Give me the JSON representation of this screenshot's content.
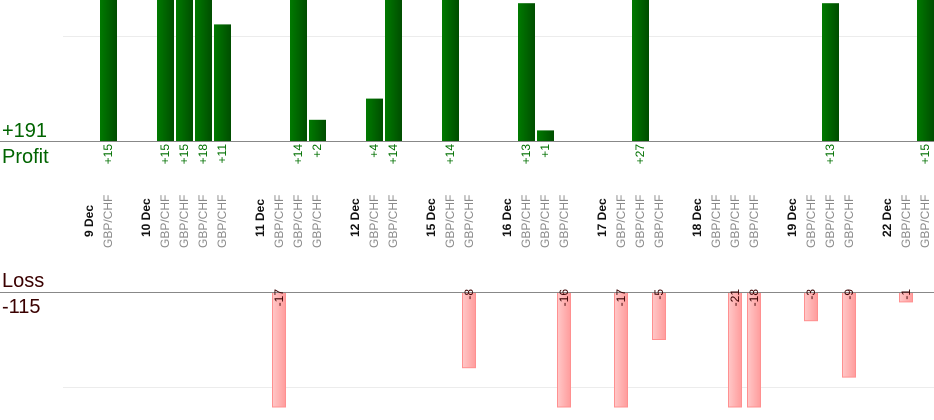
{
  "chart_data": {
    "type": "bar",
    "title": "",
    "profit": {
      "label": "Profit",
      "total": "+191",
      "color": "#006400"
    },
    "loss": {
      "label": "Loss",
      "total": "-115",
      "color": "#ffa0a0"
    },
    "days": [
      {
        "date": "9 Dec",
        "trades": [
          {
            "pair": "GBP/CHF",
            "value": 15
          }
        ]
      },
      {
        "date": "10 Dec",
        "trades": [
          {
            "pair": "GBP/CHF",
            "value": 15
          },
          {
            "pair": "GBP/CHF",
            "value": 15
          },
          {
            "pair": "GBP/CHF",
            "value": 18
          },
          {
            "pair": "GBP/CHF",
            "value": 11
          }
        ]
      },
      {
        "date": "11 Dec",
        "trades": [
          {
            "pair": "GBP/CHF",
            "value": -17
          },
          {
            "pair": "GBP/CHF",
            "value": 14
          },
          {
            "pair": "GBP/CHF",
            "value": 2
          }
        ]
      },
      {
        "date": "12 Dec",
        "trades": [
          {
            "pair": "GBP/CHF",
            "value": 4
          },
          {
            "pair": "GBP/CHF",
            "value": 14
          }
        ]
      },
      {
        "date": "15 Dec",
        "trades": [
          {
            "pair": "GBP/CHF",
            "value": 14
          },
          {
            "pair": "GBP/CHF",
            "value": -8
          }
        ]
      },
      {
        "date": "16 Dec",
        "trades": [
          {
            "pair": "GBP/CHF",
            "value": 13
          },
          {
            "pair": "GBP/CHF",
            "value": 1
          },
          {
            "pair": "GBP/CHF",
            "value": -16
          }
        ]
      },
      {
        "date": "17 Dec",
        "trades": [
          {
            "pair": "GBP/CHF",
            "value": -17
          },
          {
            "pair": "GBP/CHF",
            "value": 27
          },
          {
            "pair": "GBP/CHF",
            "value": -5
          }
        ]
      },
      {
        "date": "18 Dec",
        "trades": [
          {
            "pair": "GBP/CHF",
            "value": 0
          },
          {
            "pair": "GBP/CHF",
            "value": -21
          },
          {
            "pair": "GBP/CHF",
            "value": -18
          }
        ]
      },
      {
        "date": "19 Dec",
        "trades": [
          {
            "pair": "GBP/CHF",
            "value": -3
          },
          {
            "pair": "GBP/CHF",
            "value": 13
          },
          {
            "pair": "GBP/CHF",
            "value": -9
          }
        ]
      },
      {
        "date": "22 Dec",
        "trades": [
          {
            "pair": "GBP/CHF",
            "value": -1
          },
          {
            "pair": "GBP/CHF",
            "value": 15
          }
        ]
      }
    ]
  }
}
